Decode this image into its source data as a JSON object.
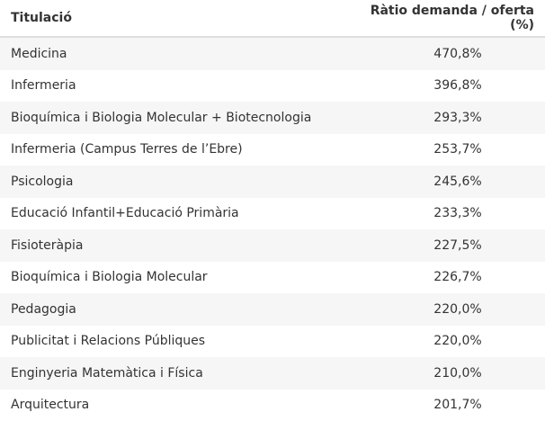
{
  "table": {
    "headers": {
      "title": "Titulació",
      "ratio": "Ràtio demanda / oferta (%)"
    },
    "rows": [
      {
        "title": "Medicina",
        "ratio": "470,8%"
      },
      {
        "title": "Infermeria",
        "ratio": "396,8%"
      },
      {
        "title": "Bioquímica i Biologia Molecular + Biotecnologia",
        "ratio": "293,3%"
      },
      {
        "title": "Infermeria (Campus Terres de l’Ebre)",
        "ratio": "253,7%"
      },
      {
        "title": "Psicologia",
        "ratio": "245,6%"
      },
      {
        "title": "Educació Infantil+Educació Primària",
        "ratio": "233,3%"
      },
      {
        "title": "Fisioteràpia",
        "ratio": "227,5%"
      },
      {
        "title": "Bioquímica i Biologia Molecular",
        "ratio": "226,7%"
      },
      {
        "title": "Pedagogia",
        "ratio": "220,0%"
      },
      {
        "title": "Publicitat i Relacions Públiques",
        "ratio": "220,0%"
      },
      {
        "title": "Enginyeria Matemàtica i Física",
        "ratio": "210,0%"
      },
      {
        "title": "Arquitectura",
        "ratio": "201,7%"
      }
    ]
  }
}
